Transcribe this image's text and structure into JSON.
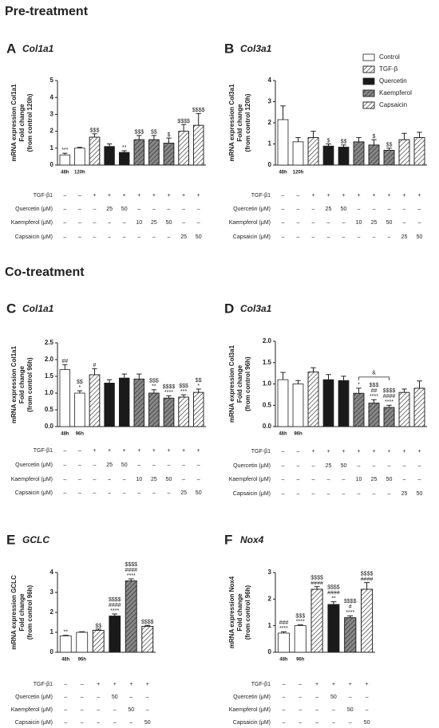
{
  "headings": [
    "Pre-treatment",
    "Co-treatment"
  ],
  "chart_data": [
    {
      "type": "bar",
      "panel": "A",
      "title": "Col1a1",
      "ylabel": [
        "mRNA expression Col1a1",
        "Fold change",
        "(from control 120h)"
      ],
      "categories": [
        "48h",
        "120h",
        null,
        null,
        null,
        null,
        null,
        null,
        null,
        null
      ],
      "values": [
        0.6,
        1.0,
        1.65,
        1.1,
        0.75,
        1.5,
        1.5,
        1.3,
        2.0,
        2.35
      ],
      "errors": [
        0.1,
        0.05,
        0.2,
        0.15,
        0.1,
        0.25,
        0.25,
        0.3,
        0.4,
        0.7
      ],
      "colors": [
        "#ffffff",
        "#ffffff",
        "#ffffff",
        "#1a1a1a",
        "#1a1a1a",
        "#888888",
        "#888888",
        "#888888",
        "#ffffff",
        "#ffffff"
      ],
      "hatch": [
        false,
        false,
        true,
        false,
        false,
        true,
        true,
        true,
        true,
        true
      ],
      "annotations": [
        [
          "***"
        ],
        null,
        [
          "$$$"
        ],
        null,
        [
          "**"
        ],
        [
          "$$$"
        ],
        [
          "$$"
        ],
        [
          "$"
        ],
        [
          "$$$$"
        ],
        [
          "$$$$"
        ]
      ],
      "ylim": [
        0,
        5
      ],
      "yticks": [
        0,
        1,
        2,
        3,
        4,
        5
      ],
      "treatment_table": [
        {
          "label": "TGF-β1",
          "cells": [
            "–",
            "–",
            "+",
            "+",
            "+",
            "+",
            "+",
            "+",
            "+",
            "+"
          ]
        },
        {
          "label": "Quercetin (μM)",
          "cells": [
            "–",
            "–",
            "–",
            "25",
            "50",
            "–",
            "–",
            "–",
            "–",
            "–"
          ]
        },
        {
          "label": "Kaempferol (μM)",
          "cells": [
            "–",
            "–",
            "–",
            "–",
            "–",
            "10",
            "25",
            "50",
            "–",
            "–"
          ]
        },
        {
          "label": "Capsaicin (μM)",
          "cells": [
            "–",
            "–",
            "–",
            "–",
            "–",
            "–",
            "–",
            "–",
            "25",
            "50"
          ]
        }
      ]
    },
    {
      "type": "bar",
      "panel": "B",
      "title": "Col3a1",
      "ylabel": [
        "mRNA expression Col3a1",
        "Fold change",
        "(from control 120h)"
      ],
      "categories": [
        "48h",
        "120h",
        null,
        null,
        null,
        null,
        null,
        null,
        null,
        null
      ],
      "values": [
        2.15,
        1.1,
        1.3,
        0.9,
        0.85,
        1.1,
        0.95,
        0.7,
        1.2,
        1.3
      ],
      "errors": [
        0.65,
        0.2,
        0.3,
        0.1,
        0.1,
        0.2,
        0.25,
        0.1,
        0.3,
        0.25
      ],
      "colors": [
        "#ffffff",
        "#ffffff",
        "#ffffff",
        "#1a1a1a",
        "#1a1a1a",
        "#888888",
        "#888888",
        "#888888",
        "#ffffff",
        "#ffffff"
      ],
      "hatch": [
        false,
        false,
        true,
        false,
        false,
        true,
        true,
        true,
        true,
        true
      ],
      "annotations": [
        null,
        null,
        null,
        [
          "$"
        ],
        [
          "$$"
        ],
        null,
        [
          "$"
        ],
        [
          "$$"
        ],
        null,
        null
      ],
      "ylim": [
        0,
        4
      ],
      "yticks": [
        0,
        1,
        2,
        3,
        4
      ],
      "legend": {
        "names": [
          "Control",
          "TGF-β",
          "Quercetin",
          "Kaempferol",
          "Capsaicin"
        ],
        "colors": [
          "#ffffff",
          "#ffffff",
          "#1a1a1a",
          "#888888",
          "#ffffff"
        ],
        "hatch": [
          false,
          true,
          false,
          true,
          true
        ]
      },
      "treatment_table": [
        {
          "label": "TGF-β1",
          "cells": [
            "–",
            "–",
            "+",
            "+",
            "+",
            "+",
            "+",
            "+",
            "+",
            "+"
          ]
        },
        {
          "label": "Quercetin (μM)",
          "cells": [
            "–",
            "–",
            "–",
            "25",
            "50",
            "–",
            "–",
            "–",
            "–",
            "–"
          ]
        },
        {
          "label": "Kaempferol (μM)",
          "cells": [
            "–",
            "–",
            "–",
            "–",
            "–",
            "10",
            "25",
            "50",
            "–",
            "–"
          ]
        },
        {
          "label": "Capsaicin (μM)",
          "cells": [
            "–",
            "–",
            "–",
            "–",
            "–",
            "–",
            "–",
            "–",
            "25",
            "50"
          ]
        }
      ]
    },
    {
      "type": "bar",
      "panel": "C",
      "title": "Col1a1",
      "ylabel": [
        "mRNA expression Col1a1",
        "Fold change",
        "(from control 96h)"
      ],
      "categories": [
        "48h",
        "96h",
        null,
        null,
        null,
        null,
        null,
        null,
        null,
        null
      ],
      "values": [
        1.7,
        1.0,
        1.55,
        1.3,
        1.45,
        1.42,
        1.0,
        0.85,
        0.88,
        1.02
      ],
      "errors": [
        0.15,
        0.07,
        0.18,
        0.1,
        0.12,
        0.15,
        0.1,
        0.07,
        0.07,
        0.1
      ],
      "colors": [
        "#ffffff",
        "#ffffff",
        "#ffffff",
        "#1a1a1a",
        "#1a1a1a",
        "#888888",
        "#888888",
        "#888888",
        "#ffffff",
        "#ffffff"
      ],
      "hatch": [
        false,
        false,
        true,
        false,
        false,
        true,
        true,
        true,
        true,
        true
      ],
      "annotations": [
        [
          "##"
        ],
        [
          "$$",
          "*"
        ],
        [
          "#"
        ],
        null,
        null,
        null,
        [
          "$$$",
          "**"
        ],
        [
          "$$$$",
          "****"
        ],
        [
          "$$$",
          "***"
        ],
        [
          "$$",
          "*"
        ]
      ],
      "ylim": [
        0,
        2.5
      ],
      "yticks": [
        {
          "value": 0,
          "label": "0.0"
        },
        0.5,
        {
          "value": 1,
          "label": "1.0"
        },
        1.5,
        {
          "value": 2,
          "label": "2.0"
        },
        2.5
      ],
      "treatment_table": [
        {
          "label": "TGF-β1",
          "cells": [
            "–",
            "–",
            "+",
            "+",
            "+",
            "+",
            "+",
            "+",
            "+",
            "+"
          ]
        },
        {
          "label": "Quercetin (μM)",
          "cells": [
            "–",
            "–",
            "–",
            "25",
            "50",
            "–",
            "–",
            "–",
            "–",
            "–"
          ]
        },
        {
          "label": "Kaempferol (μM)",
          "cells": [
            "–",
            "–",
            "–",
            "–",
            "–",
            "10",
            "25",
            "50",
            "–",
            "–"
          ]
        },
        {
          "label": "Capsaicin (μM)",
          "cells": [
            "–",
            "–",
            "–",
            "–",
            "–",
            "–",
            "–",
            "–",
            "25",
            "50"
          ]
        }
      ]
    },
    {
      "type": "bar",
      "panel": "D",
      "title": "Col3a1",
      "ylabel": [
        "mRNA expression Col3a1",
        "Fold change",
        "(from control 96h)"
      ],
      "categories": [
        "48h",
        "96h",
        null,
        null,
        null,
        null,
        null,
        null,
        null,
        null
      ],
      "values": [
        1.1,
        1.0,
        1.28,
        1.1,
        1.08,
        0.78,
        0.55,
        0.45,
        0.8,
        0.9
      ],
      "errors": [
        0.17,
        0.08,
        0.1,
        0.12,
        0.1,
        0.12,
        0.08,
        0.05,
        0.08,
        0.17
      ],
      "colors": [
        "#ffffff",
        "#ffffff",
        "#ffffff",
        "#1a1a1a",
        "#1a1a1a",
        "#888888",
        "#888888",
        "#888888",
        "#ffffff",
        "#ffffff"
      ],
      "hatch": [
        false,
        false,
        true,
        false,
        false,
        true,
        true,
        true,
        true,
        true
      ],
      "annotations": [
        null,
        null,
        null,
        null,
        null,
        [
          "*"
        ],
        [
          "$$$",
          "##",
          "****"
        ],
        [
          "$$$$",
          "####",
          "****"
        ],
        null,
        null
      ],
      "bracket": {
        "label": "&",
        "from": 5,
        "to": 7
      },
      "ylim": [
        0,
        2
      ],
      "yticks": [
        {
          "value": 0,
          "label": "0.0"
        },
        0.5,
        {
          "value": 1,
          "label": "1.0"
        },
        1.5,
        {
          "value": 2,
          "label": "2.0"
        }
      ],
      "treatment_table": [
        {
          "label": "TGF-β1",
          "cells": [
            "–",
            "–",
            "+",
            "+",
            "+",
            "+",
            "+",
            "+",
            "+",
            "+"
          ]
        },
        {
          "label": "Quercetin (μM)",
          "cells": [
            "–",
            "–",
            "–",
            "25",
            "50",
            "–",
            "–",
            "–",
            "–",
            "–"
          ]
        },
        {
          "label": "Kaempferol (μM)",
          "cells": [
            "–",
            "–",
            "–",
            "–",
            "–",
            "10",
            "25",
            "50",
            "–",
            "–"
          ]
        },
        {
          "label": "Capsaicin (μM)",
          "cells": [
            "–",
            "–",
            "–",
            "–",
            "–",
            "–",
            "–",
            "–",
            "25",
            "50"
          ]
        }
      ]
    },
    {
      "type": "bar",
      "panel": "E",
      "title": "GCLC",
      "ylabel": [
        "mRNA expression GCLC",
        "Fold change",
        "(from control 96h)"
      ],
      "categories": [
        "48h",
        "96h",
        null,
        null,
        null,
        null
      ],
      "values": [
        0.82,
        1.0,
        1.1,
        1.82,
        3.58,
        1.3
      ],
      "errors": [
        0.03,
        0.03,
        0.06,
        0.1,
        0.1,
        0.05
      ],
      "colors": [
        "#ffffff",
        "#ffffff",
        "#ffffff",
        "#1a1a1a",
        "#888888",
        "#ffffff"
      ],
      "hatch": [
        false,
        false,
        true,
        false,
        true,
        true
      ],
      "annotations": [
        [
          "**"
        ],
        null,
        [
          "$$"
        ],
        [
          "$$$$",
          "####",
          "****"
        ],
        [
          "$$$$",
          "####",
          "****"
        ],
        [
          "$$$$"
        ]
      ],
      "ylim": [
        0,
        4
      ],
      "yticks": [
        0,
        1,
        2,
        3,
        4
      ],
      "treatment_table": [
        {
          "label": "TGF-β1",
          "cells": [
            "–",
            "–",
            "+",
            "+",
            "+",
            "+"
          ]
        },
        {
          "label": "Quercetin (μM)",
          "cells": [
            "–",
            "–",
            "–",
            "50",
            "–",
            "–"
          ]
        },
        {
          "label": "Kaempferol (μM)",
          "cells": [
            "–",
            "–",
            "–",
            "–",
            "50",
            "–"
          ]
        },
        {
          "label": "Capsaicin (μM)",
          "cells": [
            "–",
            "–",
            "–",
            "–",
            "–",
            "50"
          ]
        }
      ]
    },
    {
      "type": "bar",
      "panel": "F",
      "title": "Nox4",
      "ylabel": [
        "mRNA expression Nox4",
        "Fold change",
        "(from control 96h)"
      ],
      "categories": [
        "48h",
        "96h",
        null,
        null,
        null,
        null
      ],
      "values": [
        0.72,
        1.0,
        2.37,
        1.8,
        1.3,
        2.37
      ],
      "errors": [
        0.05,
        0.03,
        0.1,
        0.1,
        0.07,
        0.25
      ],
      "colors": [
        "#ffffff",
        "#ffffff",
        "#ffffff",
        "#1a1a1a",
        "#888888",
        "#ffffff"
      ],
      "hatch": [
        false,
        false,
        true,
        false,
        true,
        true
      ],
      "annotations": [
        [
          "###",
          "****"
        ],
        [
          "$$$",
          "****"
        ],
        [
          "$$$$",
          "####"
        ],
        [
          "$$$$",
          "####",
          "**"
        ],
        [
          "$$$$",
          "#",
          "****"
        ],
        [
          "$$$$",
          "####"
        ]
      ],
      "ylim": [
        0,
        3
      ],
      "yticks": [
        0,
        1,
        2,
        3
      ],
      "treatment_table": [
        {
          "label": "TGF-β1",
          "cells": [
            "–",
            "–",
            "+",
            "+",
            "+",
            "+"
          ]
        },
        {
          "label": "Quercetin (μM)",
          "cells": [
            "–",
            "–",
            "–",
            "50",
            "–",
            "–"
          ]
        },
        {
          "label": "Kaempferol (μM)",
          "cells": [
            "–",
            "–",
            "–",
            "–",
            "50",
            "–"
          ]
        },
        {
          "label": "Capsaicin (μM)",
          "cells": [
            "–",
            "–",
            "–",
            "–",
            "–",
            "50"
          ]
        }
      ]
    }
  ]
}
